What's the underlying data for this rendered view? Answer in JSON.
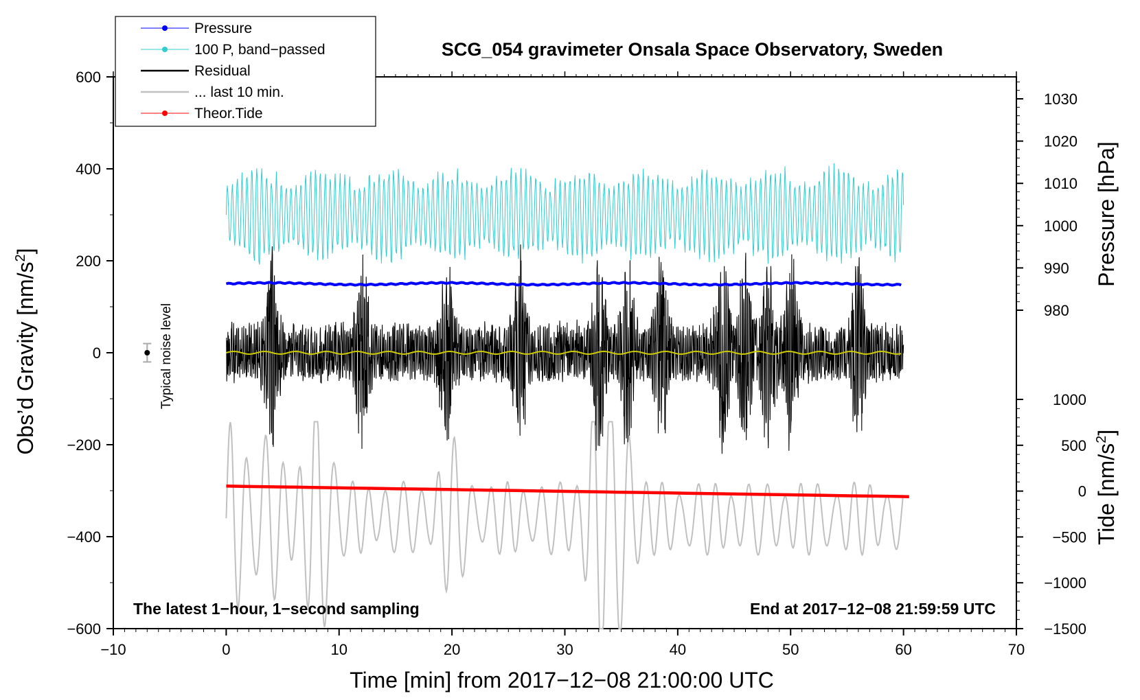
{
  "chart_data": {
    "type": "line",
    "title": "SCG_054 gravimeter Onsala Space Observatory, Sweden",
    "xlabel": "Time [min] from 2017−12−08 21:00:00 UTC",
    "ylabel_left": "Obs’d Gravity [nm/s",
    "ylabel_left_sup": "2",
    "ylabel_left_close": "]",
    "ylabel_right_pressure": "Pressure [hPa]",
    "ylabel_right_tide": "Tide [nm/s",
    "ylabel_right_tide_sup": "2",
    "ylabel_right_tide_close": "]",
    "xlim": [
      -10,
      70
    ],
    "ylim_left": [
      -600,
      600
    ],
    "pressure_range_hpa": [
      980,
      1030
    ],
    "tide_range": [
      -1500,
      1000
    ],
    "x_ticks": [
      "−10",
      "0",
      "10",
      "20",
      "30",
      "40",
      "50",
      "60",
      "70"
    ],
    "x_tick_values": [
      -10,
      0,
      10,
      20,
      30,
      40,
      50,
      60,
      70
    ],
    "y_ticks_left": [
      "600",
      "400",
      "200",
      "0",
      "−200",
      "−400",
      "−600"
    ],
    "y_tick_values_left": [
      600,
      400,
      200,
      0,
      -200,
      -400,
      -600
    ],
    "pressure_ticks": [
      "1030",
      "1020",
      "1010",
      "1000",
      "990",
      "980"
    ],
    "pressure_tick_values": [
      1030,
      1020,
      1010,
      1000,
      990,
      980
    ],
    "tide_ticks": [
      "1000",
      "500",
      "0",
      "−500",
      "−1000",
      "−1500"
    ],
    "tide_tick_values": [
      1000,
      500,
      0,
      -500,
      -1000,
      -1500
    ],
    "bottom_left_note": "The latest 1−hour, 1−second sampling",
    "bottom_right_note": "End at 2017−12−08 21:59:59 UTC",
    "noise_label": "Typical noise level",
    "noise_level_gravity": 20,
    "legend": [
      {
        "label": "Pressure",
        "color": "#0000ff",
        "marker": true
      },
      {
        "label": "100 P, band−passed",
        "color": "#33cccc",
        "marker": true
      },
      {
        "label": "Residual",
        "color": "#000000",
        "marker": false
      },
      {
        "label": "... last 10 min.",
        "color": "#c0c0c0",
        "marker": false
      },
      {
        "label": "Theor.Tide",
        "color": "#ff0000",
        "marker": true
      }
    ],
    "series": [
      {
        "name": "Pressure",
        "color": "#0000ff",
        "x_range_min": [
          0,
          60
        ],
        "level_hpa": 987.5,
        "approx_gravity_axis_value": 150
      },
      {
        "name": "100 P, band−passed",
        "color": "#33cccc",
        "x_range_min": [
          0,
          60
        ],
        "center_gravity": 300,
        "amplitude_range": [
          150,
          450
        ]
      },
      {
        "name": "Residual",
        "color": "#000000",
        "x_range_min": [
          0,
          60
        ],
        "center_gravity": 0,
        "amplitude_range": [
          -260,
          270
        ]
      },
      {
        "name": "Residual mean",
        "color": "#cccc00",
        "x_range_min": [
          0,
          60
        ],
        "level_gravity": 0
      },
      {
        "name": "... last 10 min.",
        "color": "#c0c0c0",
        "x_range_min": [
          0,
          60
        ],
        "center_gravity": -360,
        "amplitude_range": [
          -600,
          -150
        ]
      },
      {
        "name": "Theor.Tide",
        "color": "#ff0000",
        "x": [
          0,
          60.5
        ],
        "y_gravity_axis": [
          -290,
          -313
        ]
      }
    ]
  }
}
